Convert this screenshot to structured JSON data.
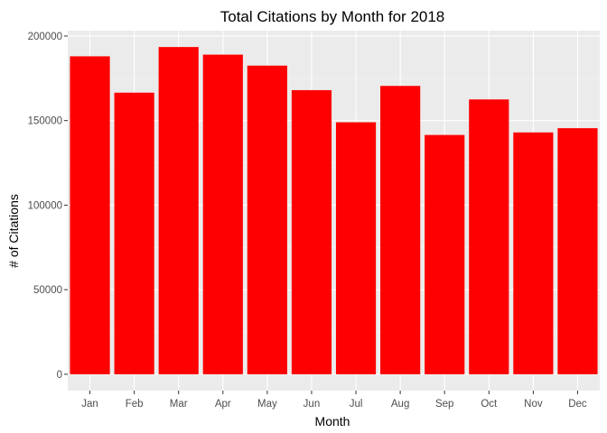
{
  "chart_data": {
    "type": "bar",
    "title": "Total Citations by Month for 2018",
    "xlabel": "Month",
    "ylabel": "# of Citations",
    "categories": [
      "Jan",
      "Feb",
      "Mar",
      "Apr",
      "May",
      "Jun",
      "Jul",
      "Aug",
      "Sep",
      "Oct",
      "Nov",
      "Dec"
    ],
    "values": [
      188000,
      166500,
      193500,
      189000,
      182500,
      168000,
      149000,
      170500,
      141500,
      162500,
      143000,
      145500
    ],
    "ylim": [
      -9670,
      203170
    ],
    "yticks": [
      0,
      50000,
      100000,
      150000,
      200000
    ],
    "ytick_labels": [
      "0",
      "50000",
      "100000",
      "150000",
      "200000"
    ],
    "grid": true,
    "legend": "none",
    "colors": {
      "bar": "#ff0000",
      "panel_background": "#ebebeb",
      "grid_major": "#ffffff",
      "grid_minor": "#f5f5f5"
    }
  }
}
